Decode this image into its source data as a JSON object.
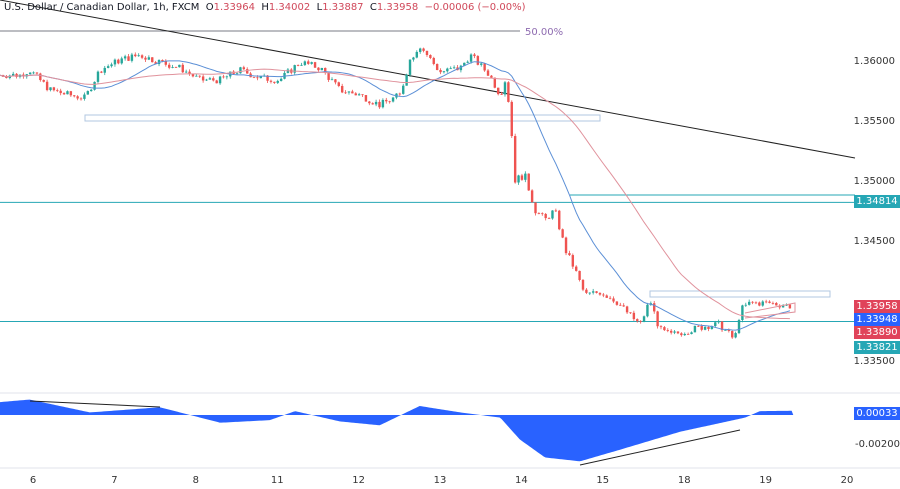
{
  "header": {
    "symbol": "U.S. Dollar / Canadian Dollar, 1h, FXCM",
    "open_prefix": "O",
    "open": "1.33964",
    "high_prefix": "H",
    "high": "1.34002",
    "low_prefix": "L",
    "low": "1.33887",
    "close_prefix": "C",
    "close": "1.33958",
    "change": "−0.00006 (−0.00%)"
  },
  "chart_data": {
    "type": "candlestick",
    "x_tick_labels": [
      "6",
      "7",
      "8",
      "11",
      "12",
      "13",
      "14",
      "15",
      "18",
      "19",
      "20"
    ],
    "y_tick_labels": [
      "1.36000",
      "1.35500",
      "1.35000",
      "1.34500",
      "1.33500"
    ],
    "y_ticks": [
      1.36,
      1.355,
      1.35,
      1.345,
      1.335
    ],
    "ylim": [
      1.3335,
      1.365
    ],
    "price_path": [
      [
        -0.41,
        1.35875
      ],
      [
        -0.16,
        1.35875
      ],
      [
        -0.04,
        1.35917
      ],
      [
        0.21,
        1.3575
      ],
      [
        0.45,
        1.35708
      ],
      [
        0.64,
        1.35683
      ],
      [
        0.82,
        1.35917
      ],
      [
        1.07,
        1.36
      ],
      [
        1.31,
        1.36042
      ],
      [
        1.56,
        1.35983
      ],
      [
        1.81,
        1.35933
      ],
      [
        2.05,
        1.35833
      ],
      [
        2.3,
        1.35833
      ],
      [
        2.54,
        1.35917
      ],
      [
        2.79,
        1.3585
      ],
      [
        3.03,
        1.35833
      ],
      [
        3.28,
        1.35983
      ],
      [
        3.53,
        1.35933
      ],
      [
        3.77,
        1.3575
      ],
      [
        4.02,
        1.35708
      ],
      [
        4.26,
        1.35625
      ],
      [
        4.51,
        1.35708
      ],
      [
        4.63,
        1.36
      ],
      [
        4.75,
        1.36125
      ],
      [
        5.0,
        1.359
      ],
      [
        5.25,
        1.35933
      ],
      [
        5.37,
        1.36042
      ],
      [
        5.61,
        1.35875
      ],
      [
        5.74,
        1.35708
      ],
      [
        5.8,
        1.35833
      ],
      [
        5.86,
        1.35583
      ],
      [
        5.92,
        1.35
      ],
      [
        6.04,
        1.35042
      ],
      [
        6.17,
        1.3475
      ],
      [
        6.29,
        1.34667
      ],
      [
        6.41,
        1.3475
      ],
      [
        6.54,
        1.34417
      ],
      [
        6.66,
        1.3425
      ],
      [
        6.78,
        1.34042
      ],
      [
        6.97,
        1.34067
      ],
      [
        7.15,
        1.34
      ],
      [
        7.33,
        1.33875
      ],
      [
        7.46,
        1.33792
      ],
      [
        7.58,
        1.34
      ],
      [
        7.7,
        1.3375
      ],
      [
        7.83,
        1.33708
      ],
      [
        8.07,
        1.3375
      ],
      [
        8.32,
        1.33792
      ],
      [
        8.44,
        1.33792
      ],
      [
        8.56,
        1.33708
      ],
      [
        8.62,
        1.33667
      ],
      [
        8.69,
        1.33917
      ],
      [
        8.81,
        1.33975
      ],
      [
        9.05,
        1.33975
      ],
      [
        9.3,
        1.3395
      ]
    ],
    "levels": [
      {
        "price": 1.34814,
        "label": "1.34814",
        "color": "#26a7b5"
      },
      {
        "price": 1.33821,
        "label": "1.33821",
        "color": "#26a7b5"
      }
    ],
    "fib_label": "50.00%",
    "fib_price": 1.36242,
    "price_labels": [
      {
        "label": "1.33958",
        "color": "#e0435a"
      },
      {
        "label": "1.33948",
        "color": "#2962ff"
      },
      {
        "label": "1.33890",
        "color": "#e0435a"
      }
    ],
    "oscillator": {
      "y_tick_label": "-0.00200",
      "current_label": "0.00033",
      "color": "#2962ff",
      "path": [
        [
          -0.41,
          0.001
        ],
        [
          -0.04,
          0.0012
        ],
        [
          0.7,
          0.0002
        ],
        [
          1.56,
          0.0006
        ],
        [
          2.3,
          -0.0006
        ],
        [
          2.91,
          -0.0004
        ],
        [
          3.22,
          0.0003
        ],
        [
          3.77,
          -0.0005
        ],
        [
          4.26,
          -0.0008
        ],
        [
          4.75,
          0.0007
        ],
        [
          5.25,
          0.0002
        ],
        [
          5.74,
          -0.0002
        ],
        [
          5.98,
          -0.0019
        ],
        [
          6.29,
          -0.0033
        ],
        [
          6.72,
          -0.0036
        ],
        [
          7.21,
          -0.0027
        ],
        [
          7.95,
          -0.0013
        ],
        [
          8.75,
          -0.0002
        ],
        [
          8.93,
          0.0003
        ],
        [
          9.34,
          0.00033
        ]
      ]
    },
    "colors": {
      "up": "#26a69a",
      "down": "#ef5350",
      "ma_fast": "#5b8fd6",
      "ma_slow": "#e0929c"
    }
  }
}
